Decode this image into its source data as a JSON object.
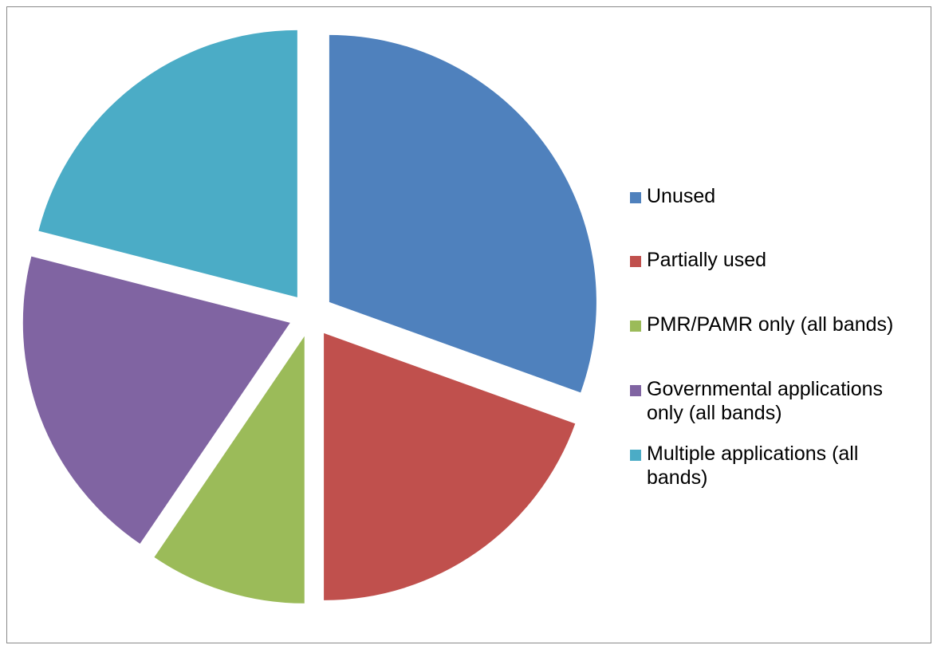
{
  "chart_data": {
    "type": "pie",
    "title": "",
    "exploded": true,
    "start_angle_deg": 0,
    "direction": "clockwise",
    "legend_position": "right",
    "slices": [
      {
        "label": "Unused",
        "value": 30.5,
        "color": "#4F81BD"
      },
      {
        "label": "Partially used",
        "value": 19.5,
        "color": "#C0504D"
      },
      {
        "label": "PMR/PAMR only (all bands)",
        "value": 9.5,
        "color": "#9BBB59"
      },
      {
        "label": "Governmental applications only (all bands)",
        "value": 19.5,
        "color": "#8064A2"
      },
      {
        "label": "Multiple applications (all bands)",
        "value": 21.0,
        "color": "#4BACC6"
      }
    ]
  }
}
